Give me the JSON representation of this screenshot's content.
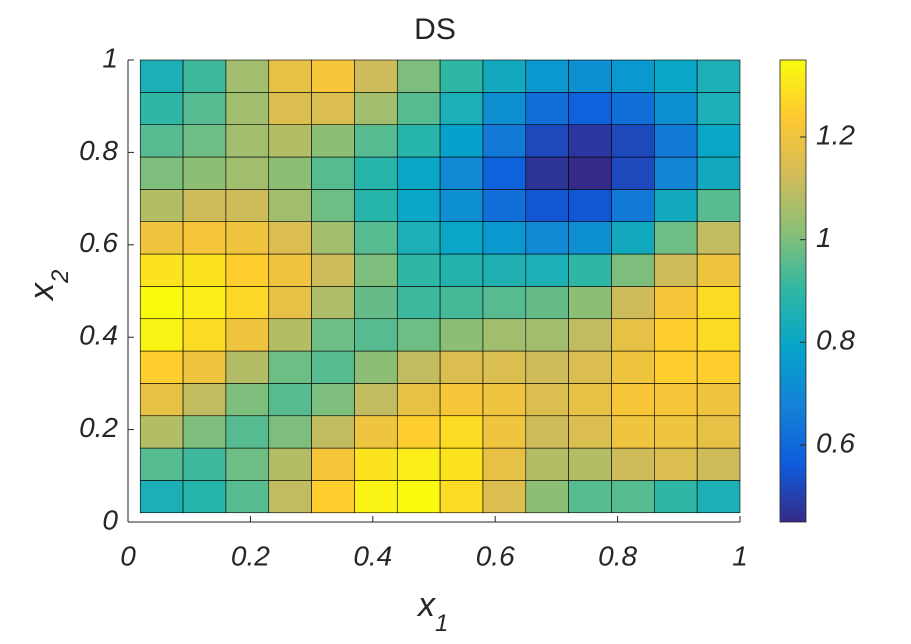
{
  "chart_data": {
    "type": "heatmap",
    "title": "DS",
    "xlabel": [
      "x",
      "1"
    ],
    "ylabel": [
      "x",
      "2"
    ],
    "xlim": [
      0,
      1
    ],
    "ylim": [
      0,
      1
    ],
    "xticks": [
      0,
      0.2,
      0.4,
      0.6,
      0.8,
      1
    ],
    "yticks": [
      0,
      0.2,
      0.4,
      0.6,
      0.8,
      1
    ],
    "x": [
      0.055,
      0.125,
      0.195,
      0.265,
      0.335,
      0.405,
      0.475,
      0.545,
      0.615,
      0.685,
      0.755,
      0.825,
      0.895,
      0.965
    ],
    "y": [
      0.055,
      0.125,
      0.195,
      0.265,
      0.335,
      0.405,
      0.475,
      0.545,
      0.615,
      0.685,
      0.755,
      0.825,
      0.895,
      0.965
    ],
    "z": [
      [
        0.85,
        0.88,
        0.95,
        1.1,
        1.25,
        1.33,
        1.35,
        1.28,
        1.15,
        1.02,
        0.95,
        0.95,
        0.9,
        0.85
      ],
      [
        0.95,
        0.92,
        0.98,
        1.08,
        1.22,
        1.3,
        1.32,
        1.3,
        1.18,
        1.08,
        1.08,
        1.12,
        1.15,
        1.12
      ],
      [
        1.08,
        1.0,
        0.95,
        1.0,
        1.1,
        1.2,
        1.25,
        1.28,
        1.2,
        1.12,
        1.15,
        1.2,
        1.2,
        1.18
      ],
      [
        1.18,
        1.1,
        1.0,
        0.95,
        1.0,
        1.1,
        1.18,
        1.22,
        1.2,
        1.15,
        1.18,
        1.22,
        1.22,
        1.2
      ],
      [
        1.25,
        1.2,
        1.08,
        0.98,
        0.95,
        1.02,
        1.1,
        1.15,
        1.15,
        1.12,
        1.15,
        1.2,
        1.25,
        1.25
      ],
      [
        1.33,
        1.28,
        1.2,
        1.08,
        0.98,
        0.95,
        0.98,
        1.02,
        1.05,
        1.05,
        1.1,
        1.18,
        1.25,
        1.28
      ],
      [
        1.35,
        1.32,
        1.27,
        1.18,
        1.07,
        0.97,
        0.92,
        0.93,
        0.95,
        0.97,
        1.02,
        1.12,
        1.22,
        1.28
      ],
      [
        1.3,
        1.3,
        1.25,
        1.2,
        1.12,
        1.0,
        0.9,
        0.87,
        0.86,
        0.85,
        0.9,
        1.0,
        1.12,
        1.2
      ],
      [
        1.2,
        1.22,
        1.2,
        1.15,
        1.05,
        0.95,
        0.85,
        0.8,
        0.75,
        0.7,
        0.72,
        0.82,
        0.98,
        1.1
      ],
      [
        1.08,
        1.12,
        1.12,
        1.05,
        0.98,
        0.88,
        0.8,
        0.72,
        0.62,
        0.55,
        0.55,
        0.65,
        0.82,
        0.95
      ],
      [
        1.0,
        1.02,
        1.05,
        1.02,
        0.95,
        0.88,
        0.8,
        0.7,
        0.58,
        0.47,
        0.45,
        0.52,
        0.68,
        0.82
      ],
      [
        0.95,
        0.98,
        1.05,
        1.08,
        1.02,
        0.95,
        0.88,
        0.78,
        0.65,
        0.52,
        0.48,
        0.52,
        0.65,
        0.8
      ],
      [
        0.9,
        0.95,
        1.05,
        1.15,
        1.15,
        1.05,
        0.95,
        0.85,
        0.72,
        0.62,
        0.58,
        0.62,
        0.72,
        0.85
      ],
      [
        0.85,
        0.92,
        1.05,
        1.18,
        1.22,
        1.12,
        1.0,
        0.9,
        0.82,
        0.75,
        0.72,
        0.75,
        0.8,
        0.85
      ]
    ],
    "clim": [
      0.45,
      1.35
    ],
    "cticks": [
      0.6,
      0.8,
      1,
      1.2
    ],
    "colormap": [
      "#352a87",
      "#0f5cdd",
      "#1481d6",
      "#06a4ca",
      "#2eb7a4",
      "#87bf77",
      "#d1bb59",
      "#fec832",
      "#f9fb0e"
    ],
    "cell_edges": true
  }
}
